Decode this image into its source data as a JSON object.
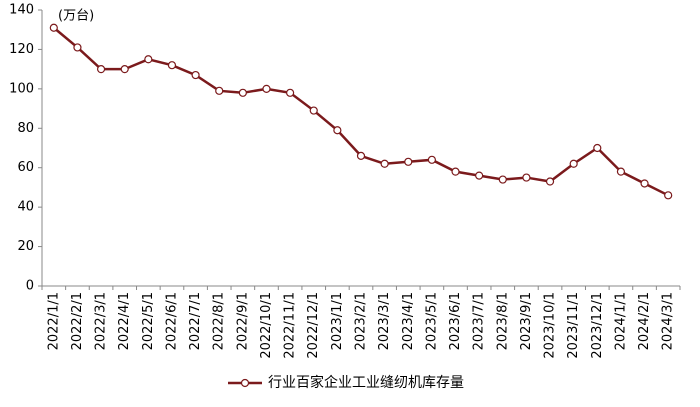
{
  "chart_data": {
    "type": "line",
    "y_unit": "(万台)",
    "categories": [
      "2022/1/1",
      "2022/2/1",
      "2022/3/1",
      "2022/4/1",
      "2022/5/1",
      "2022/6/1",
      "2022/7/1",
      "2022/8/1",
      "2022/9/1",
      "2022/10/1",
      "2022/11/1",
      "2022/12/1",
      "2023/1/1",
      "2023/2/1",
      "2023/3/1",
      "2023/4/1",
      "2023/5/1",
      "2023/6/1",
      "2023/7/1",
      "2023/8/1",
      "2023/9/1",
      "2023/10/1",
      "2023/11/1",
      "2023/12/1",
      "2024/1/1",
      "2024/2/1",
      "2024/3/1"
    ],
    "series": [
      {
        "name": "行业百家企业工业缝纫机库存量",
        "color": "#7b1a1c",
        "values": [
          131,
          121,
          110,
          110,
          115,
          112,
          107,
          99,
          98,
          100,
          98,
          89,
          79,
          66,
          62,
          63,
          64,
          58,
          56,
          54,
          55,
          53,
          62,
          70,
          58,
          52,
          46
        ]
      }
    ],
    "ylim": [
      0,
      140
    ],
    "yticks": [
      0,
      20,
      40,
      60,
      80,
      100,
      120,
      140
    ],
    "grid": false,
    "legend": "bottom"
  }
}
